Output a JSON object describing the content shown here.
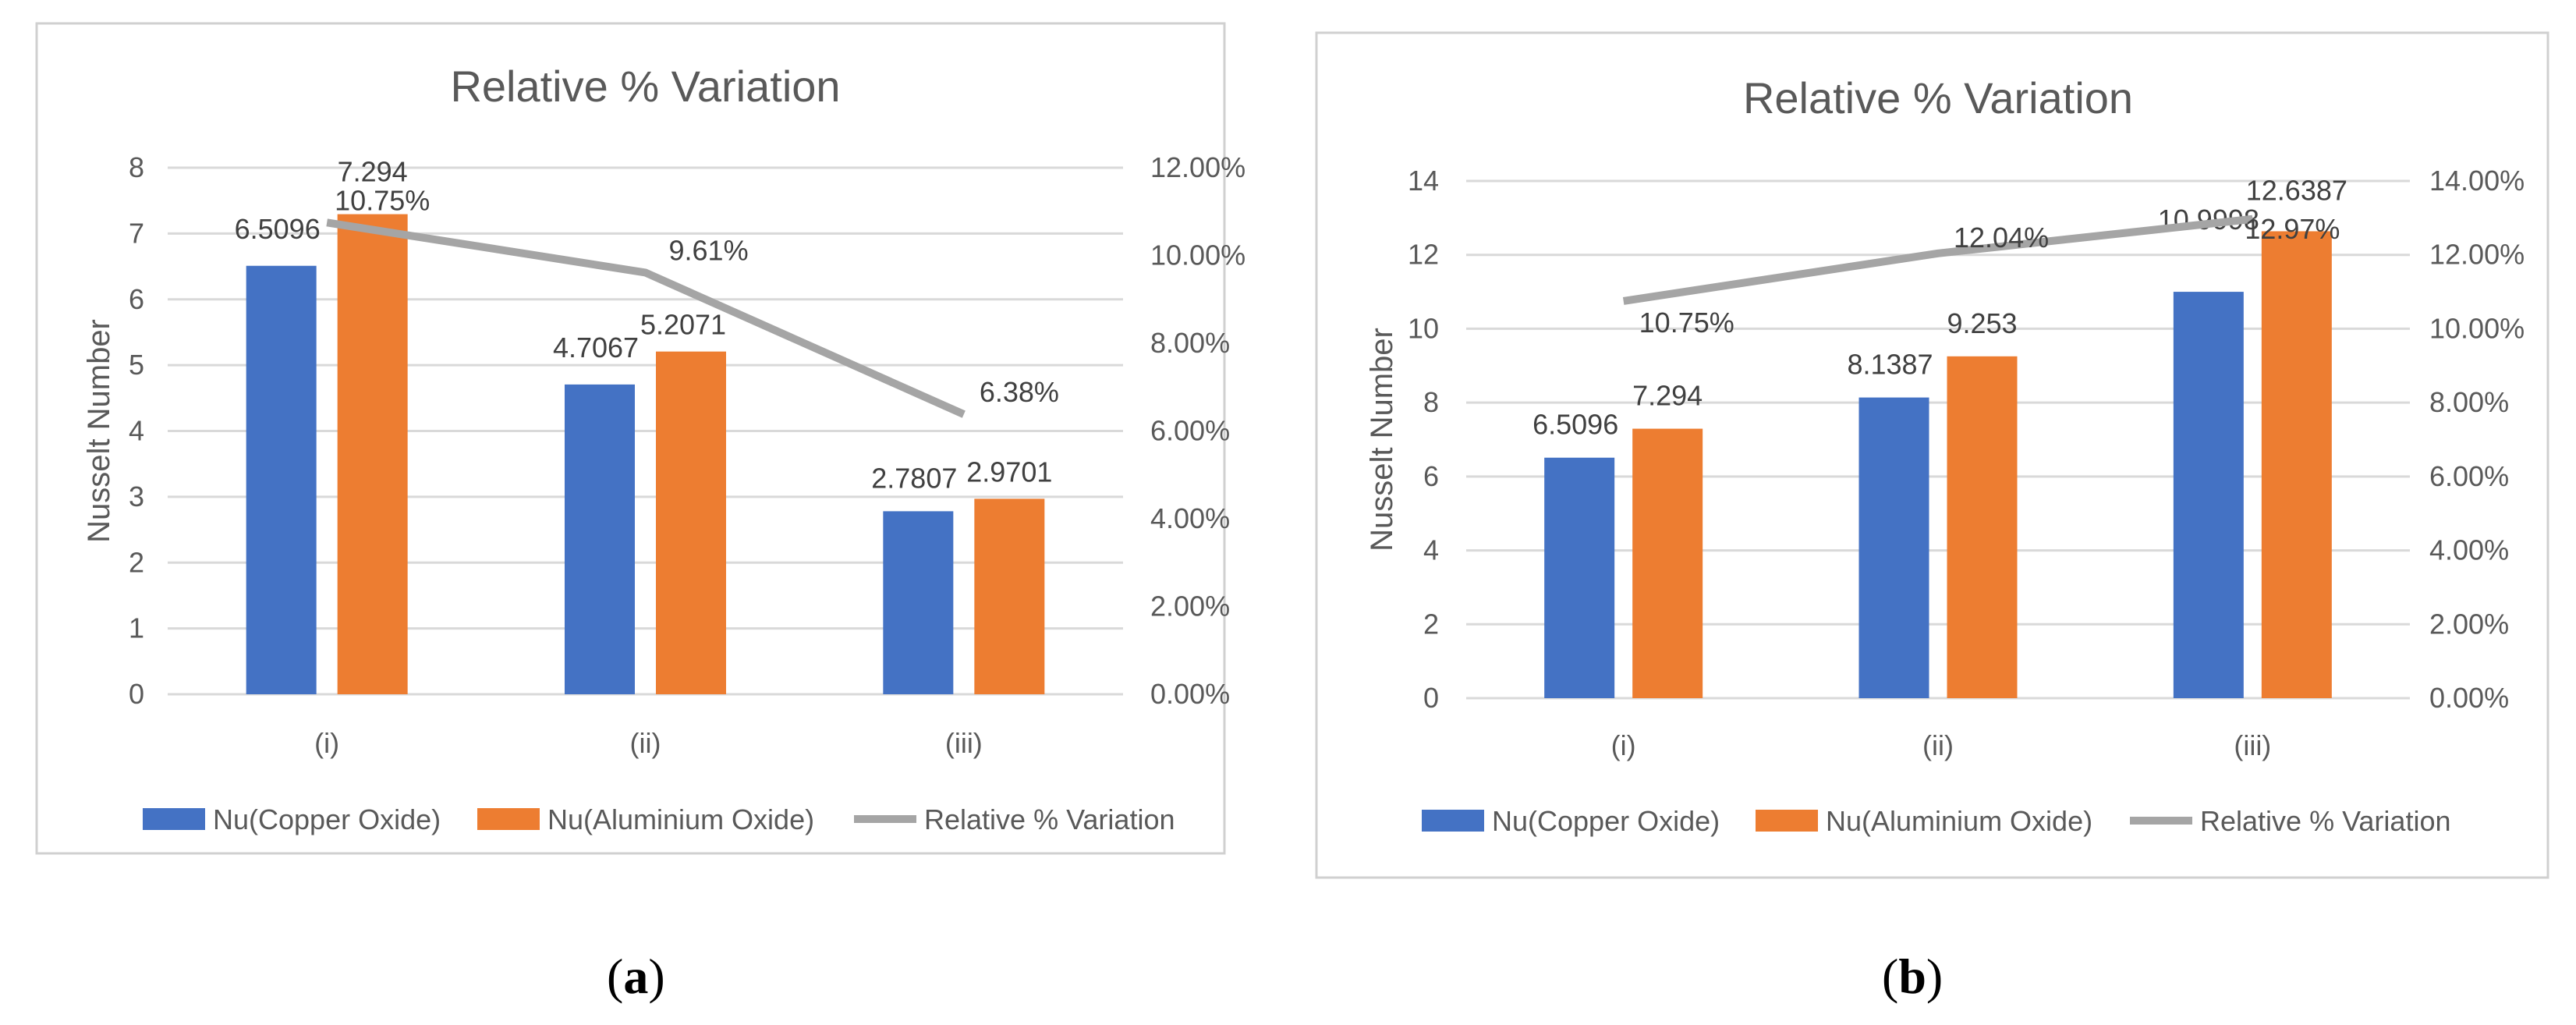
{
  "colors": {
    "copper": "#4472c4",
    "aluminium": "#ed7d31",
    "variation": "#a5a5a5",
    "text": "#595959",
    "grid": "#d9d9d9",
    "frame": "#d0d0d0"
  },
  "chart_data": [
    {
      "type": "bar",
      "panel_label": "a",
      "title": "Relative % Variation",
      "xlabel": "",
      "ylabel": "Nusselt Number",
      "categories": [
        "(i)",
        "(ii)",
        "(iii)"
      ],
      "ylim": [
        0,
        8
      ],
      "yticks": [
        "0",
        "1",
        "2",
        "3",
        "4",
        "5",
        "6",
        "7",
        "8"
      ],
      "y2lim": [
        0,
        12
      ],
      "y2ticks": [
        "0.00%",
        "2.00%",
        "4.00%",
        "6.00%",
        "8.00%",
        "10.00%",
        "12.00%"
      ],
      "series": [
        {
          "name": "Nu(Copper Oxide)",
          "kind": "bar",
          "values": [
            6.5096,
            4.7067,
            2.7807
          ],
          "labels": [
            "6.5096",
            "4.7067",
            "2.7807"
          ]
        },
        {
          "name": "Nu(Aluminium Oxide)",
          "kind": "bar",
          "values": [
            7.294,
            5.2071,
            2.9701
          ],
          "labels": [
            "7.294",
            "5.2071",
            "2.9701"
          ]
        },
        {
          "name": "Relative % Variation",
          "kind": "line",
          "axis": "secondary",
          "values": [
            10.75,
            9.61,
            6.38
          ],
          "labels": [
            "10.75%",
            "9.61%",
            "6.38%"
          ]
        }
      ],
      "legend": "bottom"
    },
    {
      "type": "bar",
      "panel_label": "b",
      "title": "Relative % Variation",
      "xlabel": "",
      "ylabel": "Nusselt Number",
      "categories": [
        "(i)",
        "(ii)",
        "(iii)"
      ],
      "ylim": [
        0,
        14
      ],
      "yticks": [
        "0",
        "2",
        "4",
        "6",
        "8",
        "10",
        "12",
        "14"
      ],
      "y2lim": [
        0,
        14
      ],
      "y2ticks": [
        "0.00%",
        "2.00%",
        "4.00%",
        "6.00%",
        "8.00%",
        "10.00%",
        "12.00%",
        "14.00%"
      ],
      "series": [
        {
          "name": "Nu(Copper Oxide)",
          "kind": "bar",
          "values": [
            6.5096,
            8.1387,
            10.9998
          ],
          "labels": [
            "6.5096",
            "8.1387",
            "10.9998"
          ]
        },
        {
          "name": "Nu(Aluminium Oxide)",
          "kind": "bar",
          "values": [
            7.294,
            9.253,
            12.6387
          ],
          "labels": [
            "7.294",
            "9.253",
            "12.6387"
          ]
        },
        {
          "name": "Relative % Variation",
          "kind": "line",
          "axis": "secondary",
          "values": [
            10.75,
            12.04,
            12.97
          ],
          "labels": [
            "10.75%",
            "12.04%",
            "12.97%"
          ]
        }
      ],
      "legend": "bottom"
    }
  ]
}
